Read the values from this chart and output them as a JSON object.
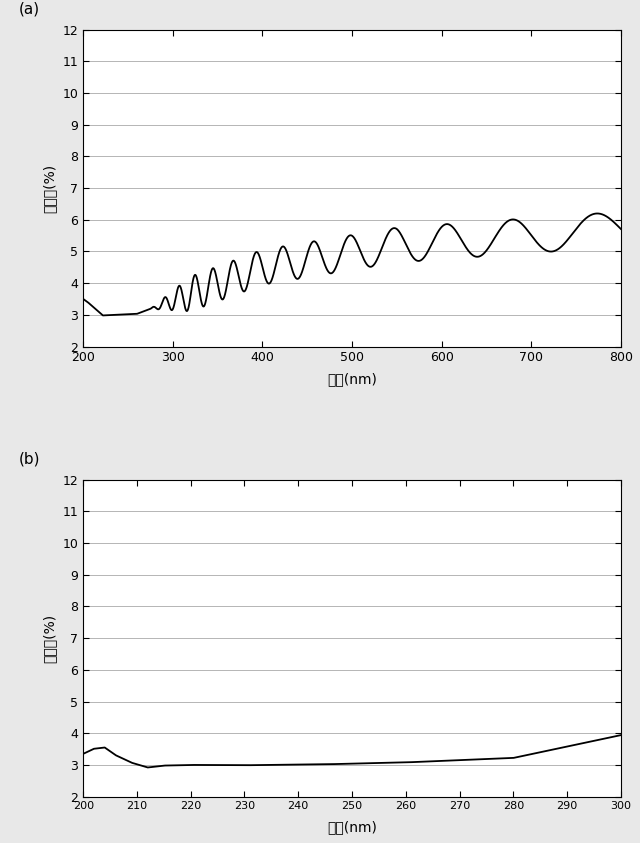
{
  "fig_width": 6.4,
  "fig_height": 8.43,
  "bg_color": "#e8e8e8",
  "panel_bg": "#ffffff",
  "label_a": "(a)",
  "label_b": "(b)",
  "ylabel": "反射率(%)",
  "xlabel": "波長(nm)",
  "ylim": [
    2,
    12
  ],
  "yticks": [
    2,
    3,
    4,
    5,
    6,
    7,
    8,
    9,
    10,
    11,
    12
  ],
  "plot_a": {
    "xlim": [
      200,
      800
    ],
    "xticks": [
      200,
      300,
      400,
      500,
      600,
      700,
      800
    ]
  },
  "plot_b": {
    "xlim": [
      200,
      300
    ],
    "xticks": [
      200,
      210,
      220,
      230,
      240,
      250,
      260,
      270,
      280,
      290,
      300
    ]
  },
  "line_color": "#000000",
  "line_width": 1.3
}
